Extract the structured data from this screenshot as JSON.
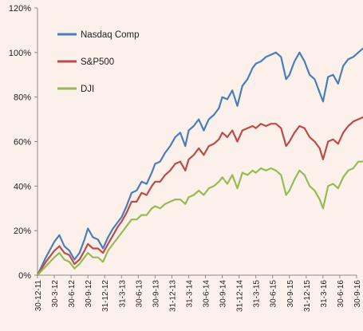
{
  "chart_data": {
    "type": "line",
    "title": "",
    "xlabel": "",
    "ylabel": "",
    "ylim": [
      0,
      120
    ],
    "y_ticks": [
      0,
      20,
      40,
      60,
      80,
      100,
      120
    ],
    "y_tick_labels": [
      "0%",
      "20%",
      "40%",
      "60%",
      "80%",
      "100%",
      "120%"
    ],
    "x_tick_labels": [
      "30-12-11",
      "30-3-12",
      "30-6-12",
      "30-9-12",
      "31-12-12",
      "31-3-13",
      "30-6-13",
      "30-9-13",
      "31-12-13",
      "31-3-14",
      "30-6-14",
      "30-9-14",
      "31-12-14",
      "31-3-15",
      "30-6-15",
      "30-9-15",
      "31-12-15",
      "31-3-16",
      "30-6-16",
      "30-9-16"
    ],
    "grid": false,
    "legend_position": "top-left",
    "series": [
      {
        "name": "Nasdaq Comp",
        "color": "#4a7ebb",
        "points": [
          [
            0,
            0
          ],
          [
            0.5,
            8
          ],
          [
            1,
            15
          ],
          [
            1.3,
            18
          ],
          [
            1.6,
            13
          ],
          [
            1.9,
            11
          ],
          [
            2.2,
            7
          ],
          [
            2.5,
            10
          ],
          [
            2.8,
            16
          ],
          [
            3,
            21
          ],
          [
            3.3,
            17
          ],
          [
            3.6,
            16
          ],
          [
            3.9,
            12
          ],
          [
            4.2,
            17
          ],
          [
            4.5,
            21
          ],
          [
            4.8,
            24
          ],
          [
            5,
            26
          ],
          [
            5.3,
            31
          ],
          [
            5.6,
            37
          ],
          [
            5.9,
            38
          ],
          [
            6.2,
            42
          ],
          [
            6.5,
            41
          ],
          [
            6.8,
            46
          ],
          [
            7,
            50
          ],
          [
            7.3,
            51
          ],
          [
            7.6,
            55
          ],
          [
            7.9,
            58
          ],
          [
            8.2,
            62
          ],
          [
            8.5,
            64
          ],
          [
            8.8,
            58
          ],
          [
            9,
            65
          ],
          [
            9.3,
            67
          ],
          [
            9.6,
            70
          ],
          [
            9.9,
            65
          ],
          [
            10.2,
            70
          ],
          [
            10.5,
            72
          ],
          [
            10.8,
            75
          ],
          [
            11,
            80
          ],
          [
            11.3,
            79
          ],
          [
            11.6,
            83
          ],
          [
            11.9,
            76
          ],
          [
            12.2,
            85
          ],
          [
            12.5,
            88
          ],
          [
            12.8,
            93
          ],
          [
            13,
            95
          ],
          [
            13.3,
            96
          ],
          [
            13.6,
            98
          ],
          [
            13.9,
            99
          ],
          [
            14.2,
            100
          ],
          [
            14.5,
            98
          ],
          [
            14.8,
            88
          ],
          [
            15,
            90
          ],
          [
            15.3,
            96
          ],
          [
            15.6,
            100
          ],
          [
            15.9,
            96
          ],
          [
            16.2,
            90
          ],
          [
            16.5,
            88
          ],
          [
            16.8,
            82
          ],
          [
            17,
            78
          ],
          [
            17.3,
            89
          ],
          [
            17.6,
            90
          ],
          [
            17.9,
            86
          ],
          [
            18.2,
            94
          ],
          [
            18.5,
            97
          ],
          [
            18.8,
            98
          ],
          [
            19.1,
            100
          ],
          [
            19.4,
            102
          ],
          [
            19.7,
            95
          ],
          [
            20,
            106
          ]
        ]
      },
      {
        "name": "S&P500",
        "color": "#be4b48",
        "points": [
          [
            0,
            0
          ],
          [
            0.5,
            6
          ],
          [
            1,
            11
          ],
          [
            1.3,
            13
          ],
          [
            1.6,
            10
          ],
          [
            1.9,
            9
          ],
          [
            2.2,
            5
          ],
          [
            2.5,
            7
          ],
          [
            2.8,
            11
          ],
          [
            3,
            14
          ],
          [
            3.3,
            12
          ],
          [
            3.6,
            12
          ],
          [
            3.9,
            10
          ],
          [
            4.2,
            14
          ],
          [
            4.5,
            18
          ],
          [
            4.8,
            22
          ],
          [
            5,
            24
          ],
          [
            5.3,
            28
          ],
          [
            5.6,
            33
          ],
          [
            5.9,
            33
          ],
          [
            6.2,
            37
          ],
          [
            6.5,
            36
          ],
          [
            6.8,
            40
          ],
          [
            7,
            42
          ],
          [
            7.3,
            42
          ],
          [
            7.6,
            45
          ],
          [
            7.9,
            47
          ],
          [
            8.2,
            50
          ],
          [
            8.5,
            51
          ],
          [
            8.8,
            47
          ],
          [
            9,
            52
          ],
          [
            9.3,
            54
          ],
          [
            9.6,
            57
          ],
          [
            9.9,
            54
          ],
          [
            10.2,
            58
          ],
          [
            10.5,
            59
          ],
          [
            10.8,
            61
          ],
          [
            11,
            64
          ],
          [
            11.3,
            62
          ],
          [
            11.6,
            65
          ],
          [
            11.9,
            60
          ],
          [
            12.2,
            65
          ],
          [
            12.5,
            66
          ],
          [
            12.8,
            67
          ],
          [
            13,
            66
          ],
          [
            13.3,
            68
          ],
          [
            13.6,
            67
          ],
          [
            13.9,
            68
          ],
          [
            14.2,
            68
          ],
          [
            14.5,
            66
          ],
          [
            14.8,
            58
          ],
          [
            15,
            60
          ],
          [
            15.3,
            64
          ],
          [
            15.6,
            67
          ],
          [
            15.9,
            66
          ],
          [
            16.2,
            62
          ],
          [
            16.5,
            60
          ],
          [
            16.8,
            57
          ],
          [
            17,
            52
          ],
          [
            17.3,
            60
          ],
          [
            17.6,
            61
          ],
          [
            17.9,
            59
          ],
          [
            18.2,
            64
          ],
          [
            18.5,
            67
          ],
          [
            18.8,
            69
          ],
          [
            19.1,
            70
          ],
          [
            19.4,
            71
          ],
          [
            19.7,
            67
          ],
          [
            20,
            75
          ]
        ]
      },
      {
        "name": "DJI",
        "color": "#98b954",
        "points": [
          [
            0,
            0
          ],
          [
            0.5,
            4
          ],
          [
            1,
            8
          ],
          [
            1.3,
            10
          ],
          [
            1.6,
            7
          ],
          [
            1.9,
            6
          ],
          [
            2.2,
            3
          ],
          [
            2.5,
            5
          ],
          [
            2.8,
            8
          ],
          [
            3,
            10
          ],
          [
            3.3,
            8
          ],
          [
            3.6,
            8
          ],
          [
            3.9,
            6
          ],
          [
            4.2,
            11
          ],
          [
            4.5,
            14
          ],
          [
            4.8,
            17
          ],
          [
            5,
            19
          ],
          [
            5.3,
            22
          ],
          [
            5.6,
            25
          ],
          [
            5.9,
            25
          ],
          [
            6.2,
            27
          ],
          [
            6.5,
            27
          ],
          [
            6.8,
            30
          ],
          [
            7,
            31
          ],
          [
            7.3,
            30
          ],
          [
            7.6,
            32
          ],
          [
            7.9,
            33
          ],
          [
            8.2,
            34
          ],
          [
            8.5,
            34
          ],
          [
            8.8,
            32
          ],
          [
            9,
            35
          ],
          [
            9.3,
            36
          ],
          [
            9.6,
            38
          ],
          [
            9.9,
            36
          ],
          [
            10.2,
            39
          ],
          [
            10.5,
            40
          ],
          [
            10.8,
            42
          ],
          [
            11,
            44
          ],
          [
            11.3,
            41
          ],
          [
            11.6,
            45
          ],
          [
            11.9,
            39
          ],
          [
            12.2,
            46
          ],
          [
            12.5,
            45
          ],
          [
            12.8,
            47
          ],
          [
            13,
            46
          ],
          [
            13.3,
            48
          ],
          [
            13.6,
            47
          ],
          [
            13.9,
            48
          ],
          [
            14.2,
            47
          ],
          [
            14.5,
            45
          ],
          [
            14.8,
            36
          ],
          [
            15,
            38
          ],
          [
            15.3,
            43
          ],
          [
            15.6,
            47
          ],
          [
            15.9,
            45
          ],
          [
            16.2,
            40
          ],
          [
            16.5,
            38
          ],
          [
            16.8,
            34
          ],
          [
            17,
            30
          ],
          [
            17.3,
            40
          ],
          [
            17.6,
            41
          ],
          [
            17.9,
            39
          ],
          [
            18.2,
            44
          ],
          [
            18.5,
            47
          ],
          [
            18.8,
            48
          ],
          [
            19.1,
            51
          ],
          [
            19.4,
            51
          ],
          [
            19.7,
            47
          ],
          [
            20,
            55
          ]
        ]
      }
    ]
  }
}
